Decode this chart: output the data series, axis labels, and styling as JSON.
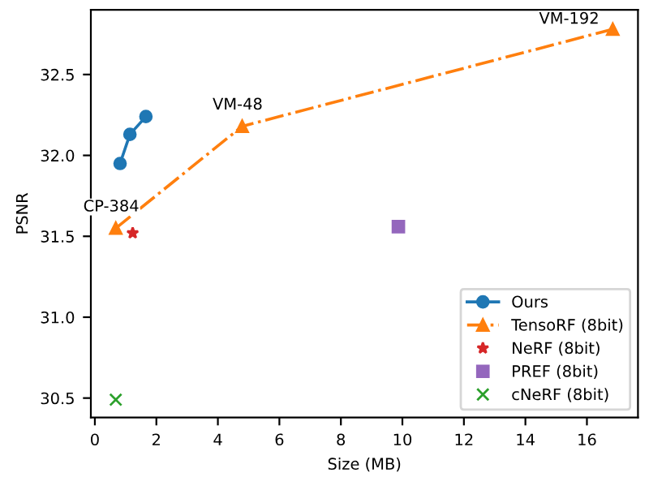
{
  "chart_data": {
    "type": "line",
    "xlabel": "Size (MB)",
    "ylabel": "PSNR",
    "series": [
      {
        "name": "Ours",
        "color": "#1f77b4",
        "marker": "circle",
        "line_style": "solid",
        "x": [
          0.82,
          1.14,
          1.66
        ],
        "values": [
          31.95,
          32.13,
          32.24
        ]
      },
      {
        "name": "TensoRF (8bit)",
        "color": "#ff7f0e",
        "marker": "triangle",
        "line_style": "dashdot",
        "x": [
          0.68,
          4.79,
          16.84
        ],
        "values": [
          31.55,
          32.18,
          32.78
        ]
      },
      {
        "name": "NeRF (8bit)",
        "type": "scatter",
        "color": "#d62728",
        "marker": "star",
        "x": [
          1.23
        ],
        "values": [
          31.52
        ]
      },
      {
        "name": "PREF (8bit)",
        "type": "scatter",
        "color": "#9467bd",
        "marker": "square",
        "x": [
          9.87
        ],
        "values": [
          31.56
        ]
      },
      {
        "name": "cNeRF (8bit)",
        "type": "scatter",
        "color": "#2ca02c",
        "marker": "cross",
        "x": [
          0.68
        ],
        "values": [
          30.49
        ]
      }
    ],
    "annotations": [
      {
        "text": "CP-384",
        "x": 0.68,
        "y": 31.55
      },
      {
        "text": "VM-48",
        "x": 4.79,
        "y": 32.18
      },
      {
        "text": "VM-192",
        "x": 16.84,
        "y": 32.78
      }
    ],
    "xlim": [
      -0.13,
      17.66
    ],
    "ylim": [
      30.38,
      32.9
    ],
    "xticks": [
      0,
      2,
      4,
      6,
      8,
      10,
      12,
      14,
      16
    ],
    "yticks": [
      30.5,
      {
        "value": 31,
        "label": "31.0"
      },
      31.5,
      {
        "value": 32,
        "label": "32.0"
      },
      32.5
    ],
    "grid": false,
    "legend": "lower right"
  }
}
